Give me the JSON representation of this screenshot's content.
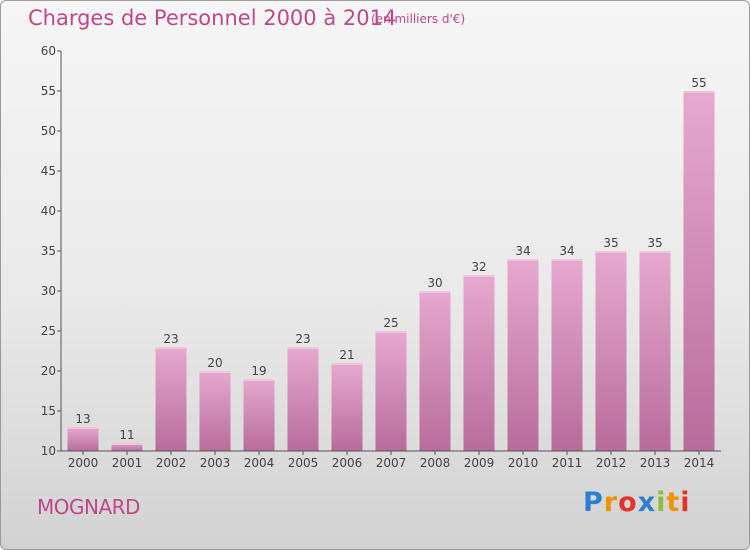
{
  "header": {
    "title": "Charges de Personnel 2000 à 2014",
    "subtitle": "(en milliers d'€)"
  },
  "footer": {
    "commune": "MOGNARD",
    "brand_letters": [
      "P",
      "r",
      "o",
      "x",
      "i",
      "t",
      "i"
    ],
    "brand_colors": [
      "#2c7fd0",
      "#f39200",
      "#e6332a",
      "#2c7fd0",
      "#8dbe3f",
      "#f39200",
      "#e6332a"
    ]
  },
  "colors": {
    "title": "#c0478a",
    "bar_top": "#e6a9cf",
    "bar_bottom": "#b86c9b",
    "axis": "#555555"
  },
  "chart_data": {
    "type": "bar",
    "categories": [
      "2000",
      "2001",
      "2002",
      "2003",
      "2004",
      "2005",
      "2006",
      "2007",
      "2008",
      "2009",
      "2010",
      "2011",
      "2012",
      "2013",
      "2014"
    ],
    "values": [
      13,
      11,
      23,
      20,
      19,
      23,
      21,
      25,
      30,
      32,
      34,
      34,
      35,
      35,
      55
    ],
    "data_labels": [
      "13",
      "11",
      "23",
      "20",
      "19",
      "23",
      "21",
      "25",
      "30",
      "32",
      "34",
      "34",
      "35",
      "35",
      "55"
    ],
    "ylim": [
      10,
      60
    ],
    "yticks": [
      "10",
      "15",
      "20",
      "25",
      "30",
      "35",
      "40",
      "45",
      "50",
      "55",
      "60"
    ],
    "grid": false
  }
}
